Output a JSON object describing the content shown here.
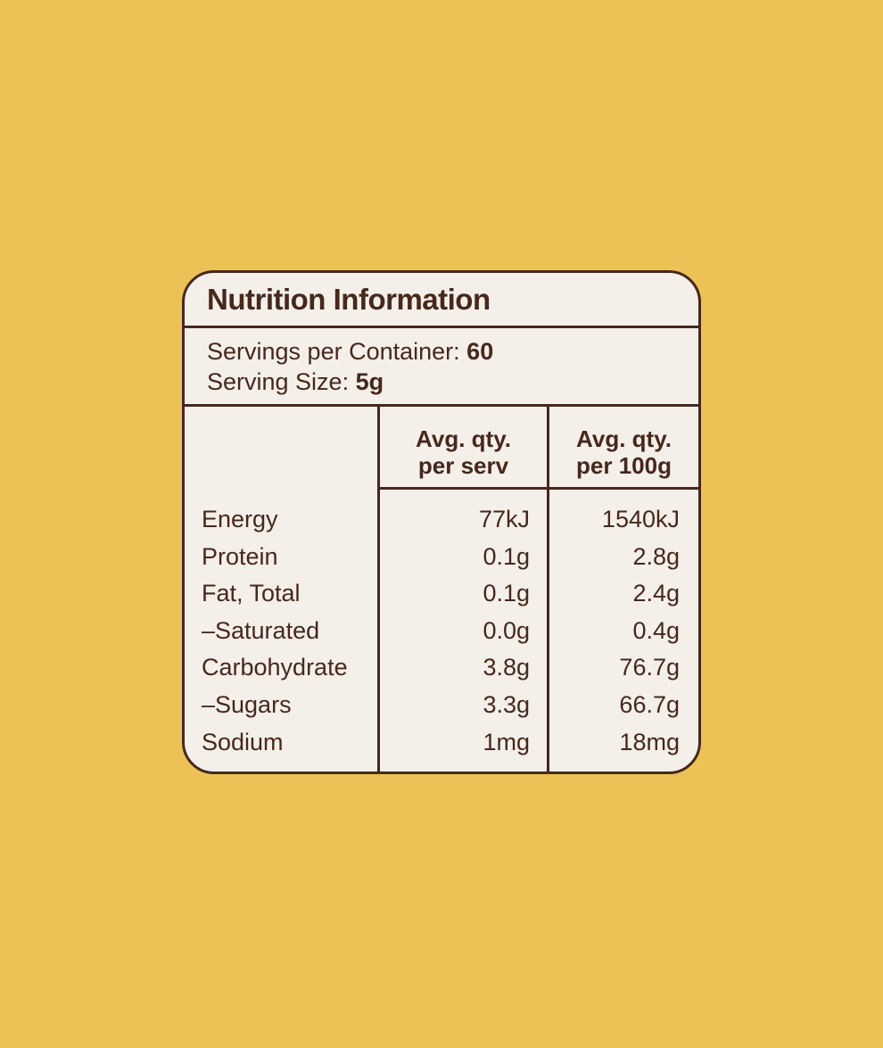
{
  "page": {
    "background_color": "#ecc156"
  },
  "label": {
    "card_color": "#f4efe9",
    "ink_color": "#46281c",
    "title": "Nutrition Information",
    "servings_per_container": {
      "text": "Servings per Container:",
      "value": "60"
    },
    "serving_size": {
      "text": "Serving Size:",
      "value": "5g"
    },
    "table": {
      "columns": [
        {
          "line1": "Avg. qty.",
          "line2": "per serv"
        },
        {
          "line1": "Avg. qty.",
          "line2": "per 100g"
        }
      ],
      "rows": [
        {
          "label": "Energy",
          "per_serv": "77kJ",
          "per_100g": "1540kJ"
        },
        {
          "label": "Protein",
          "per_serv": "0.1g",
          "per_100g": "2.8g"
        },
        {
          "label": "Fat, Total",
          "per_serv": "0.1g",
          "per_100g": "2.4g"
        },
        {
          "label": "–Saturated",
          "per_serv": "0.0g",
          "per_100g": "0.4g"
        },
        {
          "label": "Carbohydrate",
          "per_serv": "3.8g",
          "per_100g": "76.7g"
        },
        {
          "label": "–Sugars",
          "per_serv": "3.3g",
          "per_100g": "66.7g"
        },
        {
          "label": "Sodium",
          "per_serv": "1mg",
          "per_100g": "18mg"
        }
      ]
    }
  }
}
